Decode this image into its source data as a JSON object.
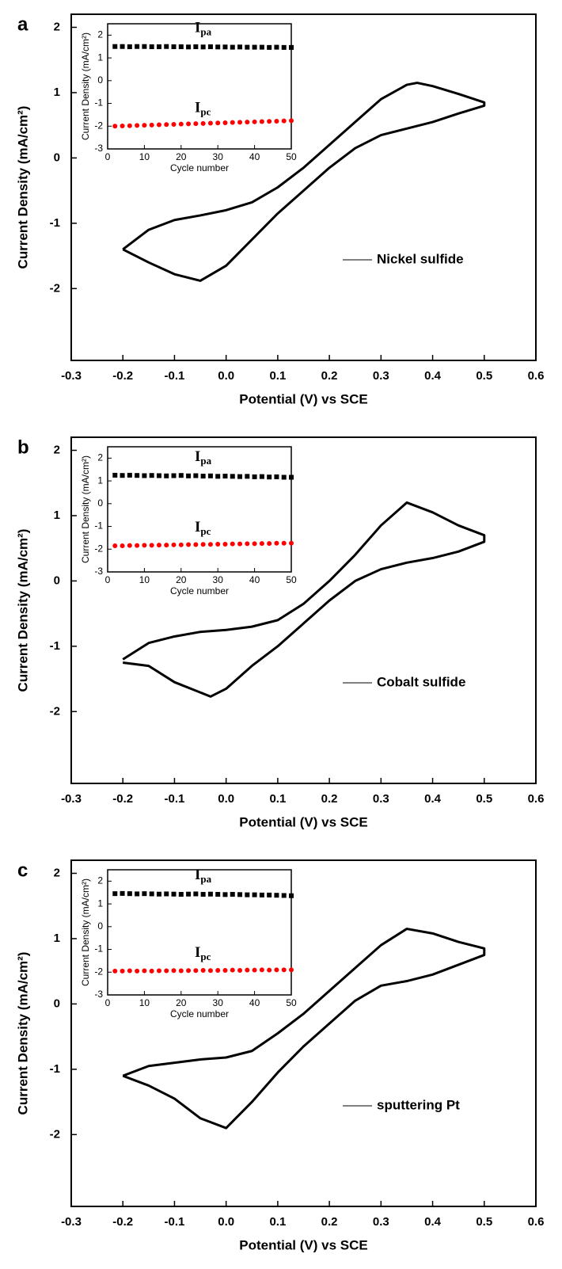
{
  "chart_data": [
    {
      "type": "line",
      "panel_label": "a",
      "xlabel": "Potential (V) vs SCE",
      "ylabel": "Current Density (mA/cm²)",
      "xlim": [
        -0.3,
        0.6
      ],
      "xticks": [
        -0.3,
        -0.2,
        -0.1,
        {
          "value": 0,
          "label": "0.0"
        },
        0.1,
        0.2,
        0.3,
        0.4,
        0.5,
        0.6
      ],
      "ylim": [
        -3.1,
        2.2
      ],
      "yticks": [
        -2,
        -1,
        0,
        1,
        2
      ],
      "x": [
        -0.2,
        -0.15,
        -0.1,
        -0.05,
        0,
        0.05,
        0.1,
        0.15,
        0.2,
        0.25,
        0.3,
        0.35,
        0.37,
        0.4,
        0.45,
        0.5,
        0.5,
        0.45,
        0.4,
        0.35,
        0.3,
        0.25,
        0.2,
        0.15,
        0.1,
        0.05,
        0,
        -0.05,
        -0.1,
        -0.15,
        -0.2
      ],
      "series": [
        {
          "name": "Nickel sulfide",
          "color": "#000000",
          "values": [
            -1.4,
            -1.1,
            -0.95,
            -0.88,
            -0.8,
            -0.68,
            -0.45,
            -0.15,
            0.2,
            0.55,
            0.9,
            1.12,
            1.15,
            1.1,
            0.98,
            0.85,
            0.8,
            0.68,
            0.55,
            0.45,
            0.35,
            0.15,
            -0.15,
            -0.5,
            -0.85,
            -1.25,
            -1.65,
            -1.88,
            -1.78,
            -1.6,
            -1.4
          ]
        }
      ],
      "inset": {
        "type": "scatter",
        "xlabel": "Cycle number",
        "ylabel": "Current Density (mA/cm²)",
        "xlim": [
          0,
          50
        ],
        "xticks": [
          0,
          10,
          20,
          30,
          40,
          50
        ],
        "ylim": [
          -3,
          2.5
        ],
        "yticks": [
          -3,
          -2,
          -1,
          0,
          1,
          2
        ],
        "x": [
          2,
          4,
          6,
          8,
          10,
          12,
          14,
          16,
          18,
          20,
          22,
          24,
          26,
          28,
          30,
          32,
          34,
          36,
          38,
          40,
          42,
          44,
          46,
          48,
          50
        ],
        "series": [
          {
            "name": "I",
            "subscript": "pa",
            "color": "#000000",
            "marker": "square",
            "values": [
              1.5,
              1.5,
              1.49,
              1.5,
              1.5,
              1.49,
              1.49,
              1.5,
              1.49,
              1.49,
              1.48,
              1.49,
              1.48,
              1.49,
              1.48,
              1.48,
              1.47,
              1.48,
              1.47,
              1.47,
              1.47,
              1.46,
              1.47,
              1.46,
              1.46
            ]
          },
          {
            "name": "I",
            "subscript": "pc",
            "color": "#ff0000",
            "marker": "circle",
            "values": [
              -2.0,
              -1.99,
              -1.98,
              -1.97,
              -1.96,
              -1.95,
              -1.94,
              -1.93,
              -1.92,
              -1.91,
              -1.9,
              -1.89,
              -1.88,
              -1.87,
              -1.86,
              -1.85,
              -1.84,
              -1.83,
              -1.82,
              -1.81,
              -1.8,
              -1.79,
              -1.78,
              -1.77,
              -1.76
            ]
          }
        ]
      }
    },
    {
      "type": "line",
      "panel_label": "b",
      "xlabel": "Potential (V) vs SCE",
      "ylabel": "Current Density (mA/cm²)",
      "xlim": [
        -0.3,
        0.6
      ],
      "xticks": [
        -0.3,
        -0.2,
        -0.1,
        {
          "value": 0,
          "label": "0.0"
        },
        0.1,
        0.2,
        0.3,
        0.4,
        0.5,
        0.6
      ],
      "ylim": [
        -3.1,
        2.2
      ],
      "yticks": [
        -2,
        -1,
        0,
        1,
        2
      ],
      "x": [
        -0.2,
        -0.15,
        -0.1,
        -0.05,
        0,
        0.05,
        0.1,
        0.15,
        0.2,
        0.25,
        0.3,
        0.35,
        0.4,
        0.45,
        0.5,
        0.5,
        0.45,
        0.4,
        0.35,
        0.3,
        0.25,
        0.2,
        0.15,
        0.1,
        0.05,
        0,
        -0.03,
        -0.1,
        -0.15,
        -0.2
      ],
      "series": [
        {
          "name": "Cobalt sulfide",
          "color": "#000000",
          "values": [
            -1.2,
            -0.95,
            -0.85,
            -0.78,
            -0.75,
            -0.7,
            -0.6,
            -0.35,
            0,
            0.4,
            0.85,
            1.2,
            1.05,
            0.85,
            0.7,
            0.6,
            0.45,
            0.35,
            0.28,
            0.18,
            0,
            -0.3,
            -0.65,
            -1.0,
            -1.3,
            -1.65,
            -1.77,
            -1.55,
            -1.3,
            -1.25
          ]
        }
      ],
      "inset": {
        "type": "scatter",
        "xlabel": "Cycle number",
        "ylabel": "Current Density (mA/cm²)",
        "xlim": [
          0,
          50
        ],
        "xticks": [
          0,
          10,
          20,
          30,
          40,
          50
        ],
        "ylim": [
          -3,
          2.5
        ],
        "yticks": [
          -3,
          -2,
          -1,
          0,
          1,
          2
        ],
        "x": [
          2,
          4,
          6,
          8,
          10,
          12,
          14,
          16,
          18,
          20,
          22,
          24,
          26,
          28,
          30,
          32,
          34,
          36,
          38,
          40,
          42,
          44,
          46,
          48,
          50
        ],
        "series": [
          {
            "name": "I",
            "subscript": "pa",
            "color": "#000000",
            "marker": "square",
            "values": [
              1.25,
              1.24,
              1.25,
              1.24,
              1.23,
              1.24,
              1.23,
              1.22,
              1.23,
              1.24,
              1.22,
              1.23,
              1.21,
              1.22,
              1.2,
              1.21,
              1.2,
              1.19,
              1.2,
              1.18,
              1.19,
              1.17,
              1.18,
              1.16,
              1.16
            ]
          },
          {
            "name": "I",
            "subscript": "pc",
            "color": "#ff0000",
            "marker": "circle",
            "values": [
              -1.85,
              -1.85,
              -1.84,
              -1.84,
              -1.83,
              -1.83,
              -1.82,
              -1.82,
              -1.81,
              -1.81,
              -1.8,
              -1.8,
              -1.79,
              -1.79,
              -1.78,
              -1.78,
              -1.77,
              -1.77,
              -1.76,
              -1.76,
              -1.75,
              -1.75,
              -1.74,
              -1.74,
              -1.74
            ]
          }
        ]
      }
    },
    {
      "type": "line",
      "panel_label": "c",
      "xlabel": "Potential (V) vs SCE",
      "ylabel": "Current Density (mA/cm²)",
      "xlim": [
        -0.3,
        0.6
      ],
      "xticks": [
        -0.3,
        -0.2,
        -0.1,
        {
          "value": 0,
          "label": "0.0"
        },
        0.1,
        0.2,
        0.3,
        0.4,
        0.5,
        0.6
      ],
      "ylim": [
        -3.1,
        2.2
      ],
      "yticks": [
        -2,
        -1,
        0,
        1,
        2
      ],
      "x": [
        -0.2,
        -0.15,
        -0.1,
        -0.05,
        0,
        0.05,
        0.1,
        0.15,
        0.2,
        0.25,
        0.3,
        0.35,
        0.4,
        0.45,
        0.5,
        0.5,
        0.45,
        0.4,
        0.35,
        0.3,
        0.25,
        0.2,
        0.15,
        0.1,
        0.05,
        0,
        -0.05,
        -0.1,
        -0.15,
        -0.2
      ],
      "series": [
        {
          "name": "sputtering Pt",
          "color": "#000000",
          "values": [
            -1.1,
            -0.95,
            -0.9,
            -0.85,
            -0.82,
            -0.72,
            -0.45,
            -0.15,
            0.2,
            0.55,
            0.9,
            1.15,
            1.08,
            0.95,
            0.85,
            0.75,
            0.6,
            0.45,
            0.35,
            0.28,
            0.05,
            -0.3,
            -0.65,
            -1.05,
            -1.5,
            -1.9,
            -1.75,
            -1.45,
            -1.25,
            -1.1
          ]
        }
      ],
      "inset": {
        "type": "scatter",
        "xlabel": "Cycle number",
        "ylabel": "Current Density (mA/cm²)",
        "xlim": [
          0,
          50
        ],
        "xticks": [
          0,
          10,
          20,
          30,
          40,
          50
        ],
        "ylim": [
          -3,
          2.5
        ],
        "yticks": [
          -3,
          -2,
          -1,
          0,
          1,
          2
        ],
        "x": [
          2,
          4,
          6,
          8,
          10,
          12,
          14,
          16,
          18,
          20,
          22,
          24,
          26,
          28,
          30,
          32,
          34,
          36,
          38,
          40,
          42,
          44,
          46,
          48,
          50
        ],
        "series": [
          {
            "name": "I",
            "subscript": "pa",
            "color": "#000000",
            "marker": "square",
            "values": [
              1.45,
              1.46,
              1.45,
              1.44,
              1.45,
              1.44,
              1.43,
              1.44,
              1.43,
              1.42,
              1.43,
              1.44,
              1.42,
              1.43,
              1.42,
              1.41,
              1.42,
              1.41,
              1.4,
              1.4,
              1.39,
              1.39,
              1.38,
              1.37,
              1.36
            ]
          },
          {
            "name": "I",
            "subscript": "pc",
            "color": "#ff0000",
            "marker": "circle",
            "values": [
              -1.95,
              -1.95,
              -1.94,
              -1.95,
              -1.94,
              -1.95,
              -1.94,
              -1.94,
              -1.93,
              -1.94,
              -1.93,
              -1.93,
              -1.92,
              -1.93,
              -1.92,
              -1.92,
              -1.91,
              -1.92,
              -1.91,
              -1.91,
              -1.9,
              -1.91,
              -1.9,
              -1.9,
              -1.9
            ]
          }
        ]
      }
    }
  ]
}
